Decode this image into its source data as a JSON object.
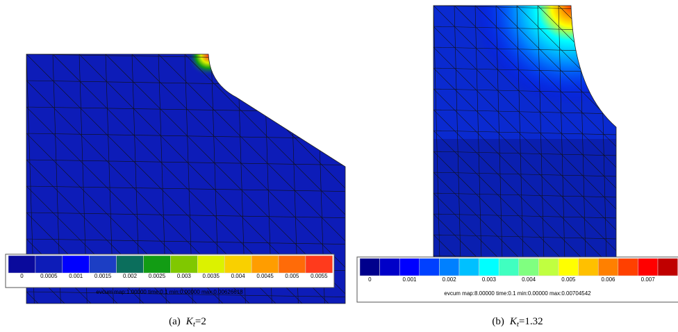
{
  "panels": [
    {
      "colorbar": {
        "colors": [
          "#0a0a9c",
          "#0d1cb8",
          "#0000ff",
          "#1c3ec4",
          "#0b6e5c",
          "#129c14",
          "#80c800",
          "#dcf200",
          "#f9d000",
          "#ff9d00",
          "#ff6b08",
          "#ff3a1c"
        ],
        "labels": [
          "0",
          "0.0005",
          "0.001",
          "0.0015",
          "0.002",
          "0.0025",
          "0.003",
          "0.0035",
          "0.004",
          "0.0045",
          "0.005",
          "0.0055"
        ],
        "footer": "evcum map:1.00000    time:0.1       min:0.00000 max:0.00626618"
      },
      "caption": {
        "label": "(a)",
        "symbol": "K",
        "subscript": "t",
        "value": "=2"
      }
    },
    {
      "colorbar": {
        "colors": [
          "#00008c",
          "#0000c8",
          "#0000ff",
          "#0040ff",
          "#0080ff",
          "#00c0ff",
          "#00ffff",
          "#40ffc0",
          "#80ff80",
          "#c0ff40",
          "#ffff00",
          "#ffc000",
          "#ff8000",
          "#ff4000",
          "#ff0000",
          "#c00000"
        ],
        "labels": [
          "0",
          "0.001",
          "0.002",
          "0.003",
          "0.004",
          "0.005",
          "0.006",
          "0.007"
        ],
        "footer": "evcum map:8.00000    time:0.1       min:0.00000 max:0.00704542"
      },
      "caption": {
        "label": "(b)",
        "symbol": "K",
        "subscript": "t",
        "value": "=1.32"
      }
    }
  ]
}
